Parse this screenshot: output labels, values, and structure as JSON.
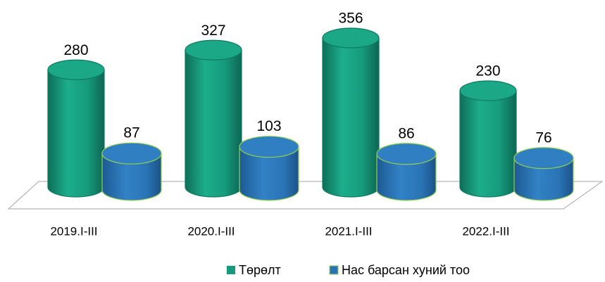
{
  "chart_data": {
    "type": "cylinder",
    "categories": [
      "2019.I-III",
      "2020.I-III",
      "2021.I-III",
      "2022.I-III"
    ],
    "series": [
      {
        "name": "Төрөлт",
        "color": "#169b7d",
        "values": [
          280,
          327,
          356,
          230
        ]
      },
      {
        "name": "Нас барсан хуний тоо",
        "color": "#2a74b5",
        "values": [
          87,
          103,
          86,
          76
        ]
      }
    ],
    "legend": "bottom"
  }
}
